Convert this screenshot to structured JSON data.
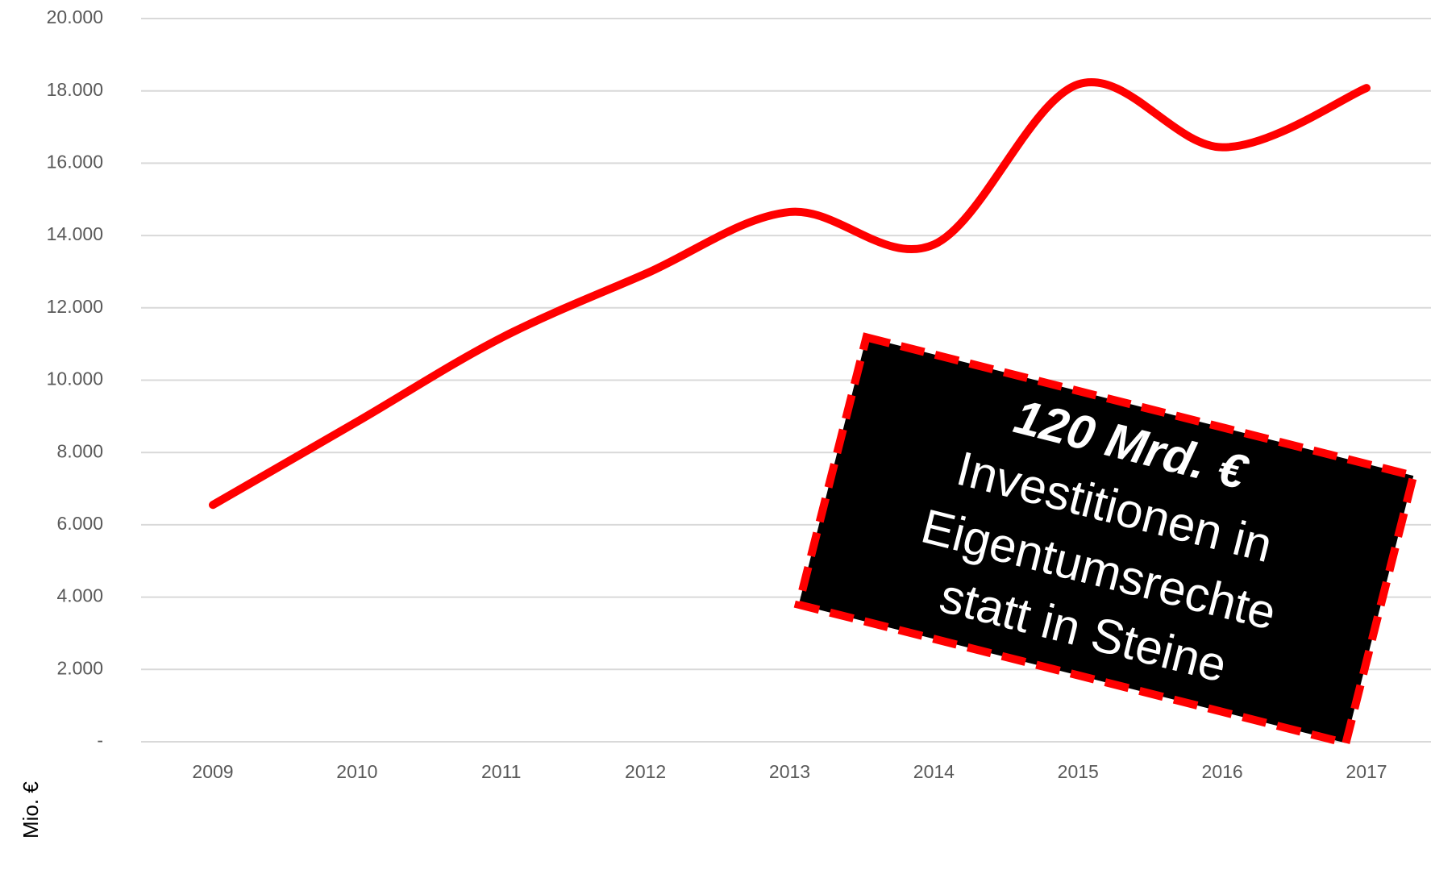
{
  "chart_data": {
    "type": "line",
    "y_axis_label": "Mio. €",
    "categories": [
      "2009",
      "2010",
      "2011",
      "2012",
      "2013",
      "2014",
      "2015",
      "2016",
      "2017"
    ],
    "series": [
      {
        "name": null,
        "color": "#ff0000",
        "values": [
          6550,
          8850,
          11170,
          12940,
          14650,
          13750,
          18180,
          16440,
          18080
        ]
      }
    ],
    "ylim": [
      0,
      20000
    ],
    "yticks": [
      {
        "value": 0,
        "label": "-"
      },
      {
        "value": 2000,
        "label": "2.000"
      },
      {
        "value": 4000,
        "label": "4.000"
      },
      {
        "value": 6000,
        "label": "6.000"
      },
      {
        "value": 8000,
        "label": "8.000"
      },
      {
        "value": 10000,
        "label": "10.000"
      },
      {
        "value": 12000,
        "label": "12.000"
      },
      {
        "value": 14000,
        "label": "14.000"
      },
      {
        "value": 16000,
        "label": "16.000"
      },
      {
        "value": 18000,
        "label": "18.000"
      },
      {
        "value": 20000,
        "label": "20.000"
      }
    ],
    "grid": true,
    "smooth": true,
    "annotation_lines": [
      "120 Mrd. €",
      "Investitionen in",
      "Eigentumsrechte",
      "statt in Steine"
    ]
  }
}
